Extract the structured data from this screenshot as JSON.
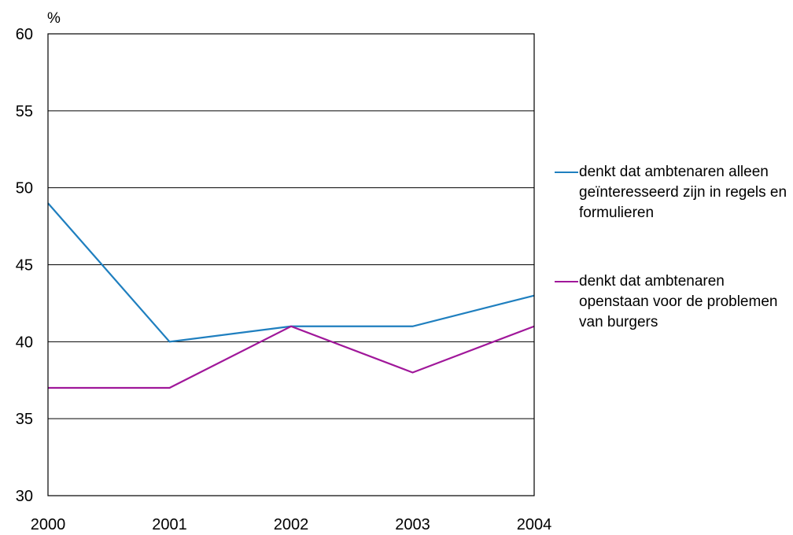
{
  "chart_data": {
    "type": "line",
    "ylabel": "%",
    "ylim": [
      30,
      60
    ],
    "yticks": [
      "30",
      "35",
      "40",
      "45",
      "50",
      "55",
      "60"
    ],
    "categories": [
      "2000",
      "2001",
      "2002",
      "2003",
      "2004"
    ],
    "series": [
      {
        "name": "denkt dat ambtenaren alleen geïnteresseerd zijn in regels en formulieren",
        "color": "#1f7fbf",
        "values": [
          49,
          40,
          41,
          41,
          43
        ]
      },
      {
        "name": "denkt dat ambtenaren openstaan voor de problemen van burgers",
        "color": "#a0179a",
        "values": [
          37,
          37,
          41,
          38,
          41
        ]
      }
    ],
    "grid": true,
    "legend": "right"
  }
}
